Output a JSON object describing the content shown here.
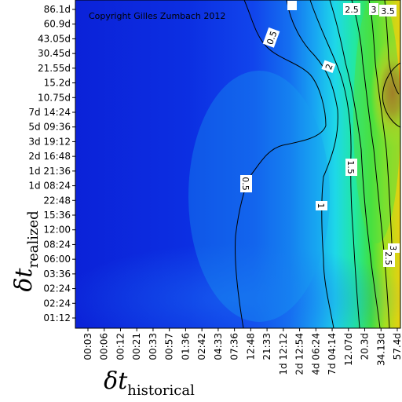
{
  "chart_data": {
    "type": "heatmap",
    "title": "",
    "annotation": "Copyright Gilles Zumbach 2012",
    "xlabel": {
      "symbol": "δt",
      "subscript": "historical"
    },
    "ylabel": {
      "symbol": "δt",
      "subscript": "realized"
    },
    "x_ticks": [
      "00:03",
      "00:06",
      "00:12",
      "00:21",
      "00:33",
      "00:57",
      "01:36",
      "02:42",
      "04:33",
      "07:36",
      "12:48",
      "21:33",
      "1d 12:12",
      "2d 12:54",
      "4d 06:24",
      "7d 04:14",
      "12.07d",
      "20.3d",
      "34.13d",
      "57.4d"
    ],
    "y_ticks": [
      "86.1d",
      "60.9d",
      "43.05d",
      "30.45d",
      "21.55d",
      "15.2d",
      "10.75d",
      "7d 14:24",
      "5d 09:36",
      "3d 19:12",
      "2d 16:48",
      "1d 21:36",
      "1d 08:24",
      "22:48",
      "15:36",
      "12:00",
      "08:24",
      "06:00",
      "03:36",
      "02:24",
      "02:24",
      "01:12"
    ],
    "contour_levels": [
      0.5,
      1,
      1.5,
      2,
      2.5,
      3,
      3.5
    ],
    "contour_labels": [
      "0.5",
      "0.5",
      "1",
      "1.5",
      "2",
      "2.5",
      "3",
      "3.5",
      "3",
      "2.5"
    ],
    "colormap": [
      "#0a1fe0",
      "#1060f0",
      "#18b8f0",
      "#20e8c8",
      "#30e060",
      "#80e020",
      "#e8e010",
      "#f09010",
      "#f03010"
    ],
    "grid": false,
    "legend": "none"
  }
}
